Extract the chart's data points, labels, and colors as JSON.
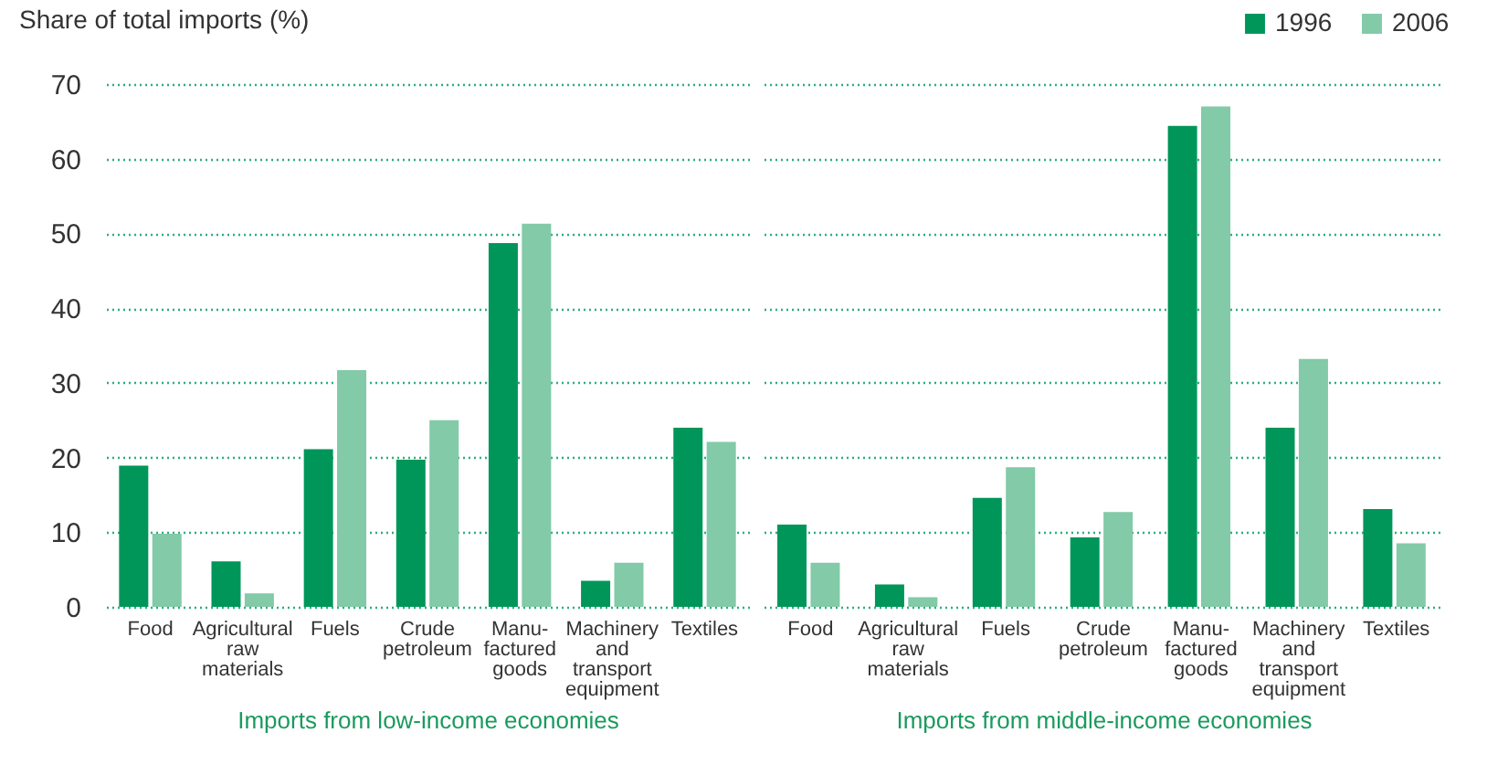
{
  "chart_data": [
    {
      "type": "bar",
      "xlabel": "Imports from low-income economies",
      "ylabel": "Share of total imports (%)",
      "categories": [
        "Food",
        "Agricultural raw materials",
        "Fuels",
        "Crude petroleum",
        "Manu-factured goods",
        "Machinery and transport equipment",
        "Textiles"
      ],
      "series": [
        {
          "name": "1996",
          "color": "#00965a",
          "values": [
            18.9,
            6.1,
            21.1,
            19.7,
            48.7,
            3.5,
            24.0
          ]
        },
        {
          "name": "2006",
          "color": "#82caa8",
          "values": [
            9.8,
            1.8,
            31.7,
            25.0,
            51.3,
            5.9,
            22.1
          ]
        }
      ],
      "ylim": [
        0,
        70
      ],
      "yticks": [
        0,
        10,
        20,
        30,
        40,
        50,
        60,
        70
      ],
      "grid": "y",
      "legend": "top right"
    },
    {
      "type": "bar",
      "xlabel": "Imports from middle-income economies",
      "categories": [
        "Food",
        "Agricultural raw materials",
        "Fuels",
        "Crude petroleum",
        "Manu-factured goods",
        "Machinery and transport equipment",
        "Textiles"
      ],
      "series": [
        {
          "name": "1996",
          "color": "#00965a",
          "values": [
            11.0,
            3.0,
            14.6,
            9.3,
            64.4,
            24.0,
            13.1
          ]
        },
        {
          "name": "2006",
          "color": "#82caa8",
          "values": [
            5.9,
            1.3,
            18.7,
            12.7,
            67.0,
            33.2,
            8.5
          ]
        }
      ],
      "ylim": [
        0,
        70
      ],
      "yticks": [
        0,
        10,
        20,
        30,
        40,
        50,
        60,
        70
      ],
      "grid": "y",
      "legend": "top right",
      "tick_labels": "x"
    }
  ]
}
